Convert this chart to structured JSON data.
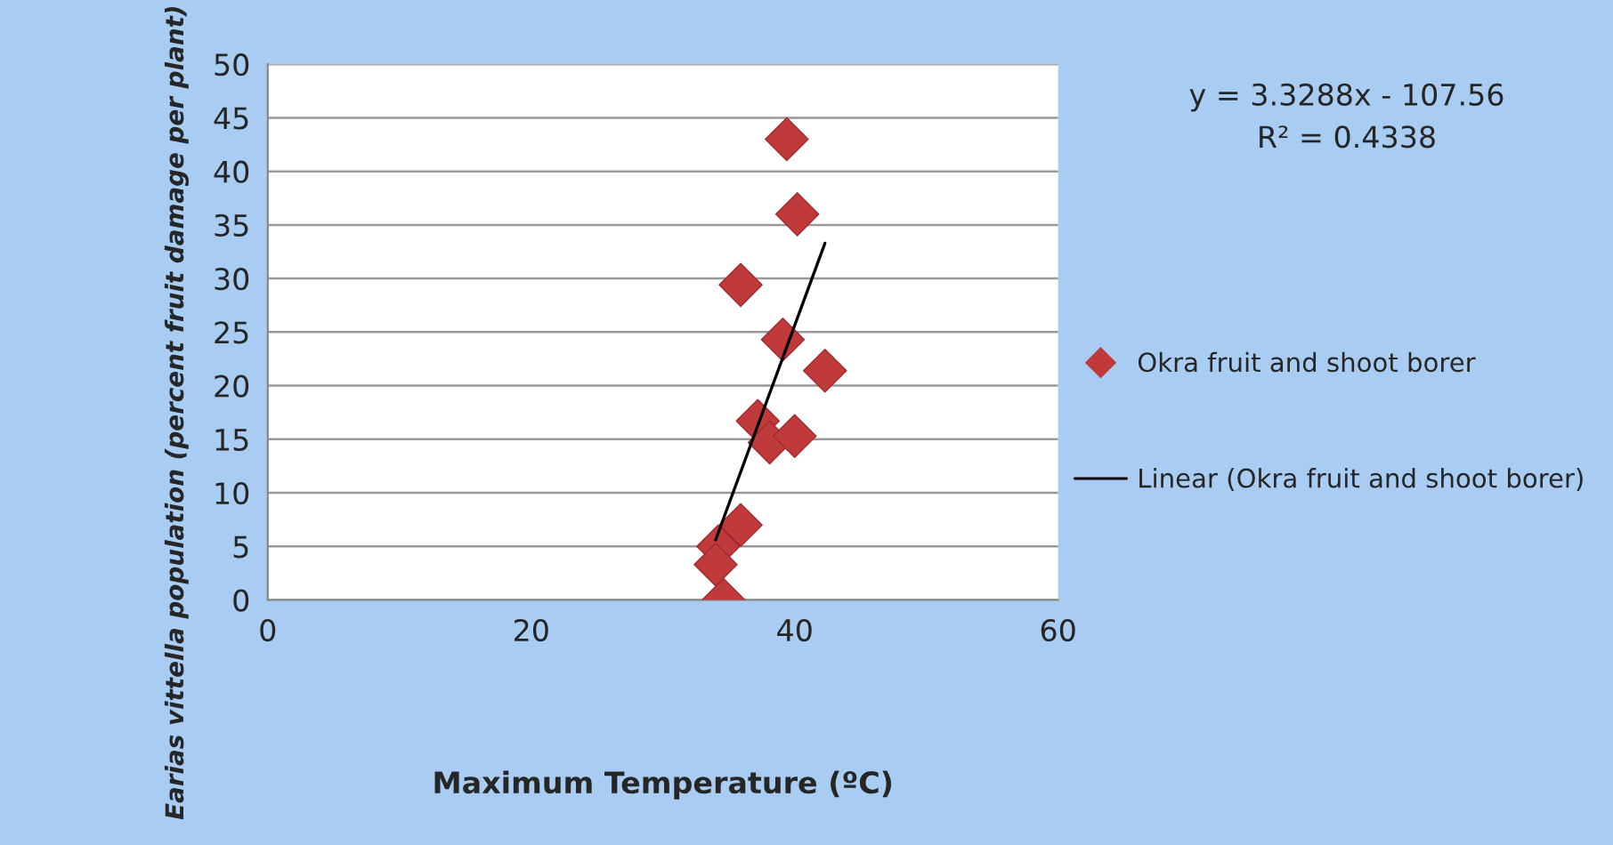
{
  "chart_data": {
    "type": "scatter",
    "xlabel": "Maximum Temperature (ºC)",
    "ylabel": "Earias vittella population (percent fruit damage per plant)",
    "series": [
      {
        "name": "Okra fruit and shoot borer",
        "color": "#c0393b",
        "marker": "diamond",
        "x": [
          39.4,
          40.2,
          35.9,
          39.1,
          42.3,
          37.2,
          38.1,
          40.0,
          35.9,
          34.2,
          34.0,
          34.6
        ],
        "values": [
          43.0,
          36.0,
          29.4,
          24.3,
          21.4,
          16.7,
          14.7,
          15.3,
          7.0,
          5.0,
          3.3,
          0
        ]
      },
      {
        "name": "Linear (Okra fruit and shoot borer)",
        "type": "line",
        "color": "#000000",
        "marker": "none",
        "line_style": "solid",
        "x": [
          34.0,
          42.3
        ],
        "values": [
          5.6,
          33.3
        ]
      }
    ],
    "xlim": [
      0,
      60
    ],
    "xticks": [
      0,
      20,
      40,
      60
    ],
    "ylim": [
      0,
      50
    ],
    "yticks": [
      0,
      5,
      10,
      15,
      20,
      25,
      30,
      35,
      40,
      45,
      50
    ],
    "grid": "y",
    "legend": "right",
    "annotations": [
      "y = 3.3288x - 107.56",
      "R² = 0.4338"
    ]
  }
}
